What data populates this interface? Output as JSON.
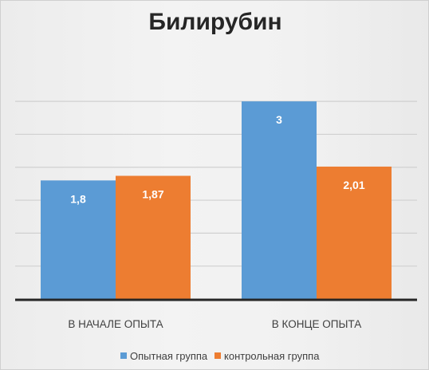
{
  "chart_data": {
    "type": "bar",
    "title": "Билирубин",
    "categories": [
      "В НАЧАЛЕ ОПЫТА",
      "В КОНЦЕ ОПЫТА"
    ],
    "series": [
      {
        "name": "Опытная группа",
        "color": "#5b9bd5",
        "values": [
          1.8,
          3
        ],
        "labels": [
          "1,8",
          "3"
        ]
      },
      {
        "name": "контрольная группа",
        "color": "#ed7d31",
        "values": [
          1.87,
          2.01
        ],
        "labels": [
          "1,87",
          "2,01"
        ]
      }
    ],
    "ylim": [
      0,
      3
    ],
    "y_gridlines": [
      0.5,
      1,
      1.5,
      2,
      2.5,
      3
    ],
    "grid": true,
    "legend_position": "bottom",
    "xlabel": "",
    "ylabel": ""
  }
}
